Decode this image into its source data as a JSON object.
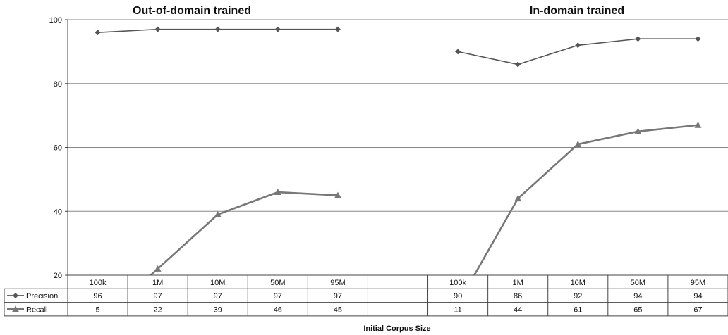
{
  "chart_data": {
    "type": "line",
    "xlabel": "Initial Corpus Size",
    "ylabel": "",
    "ylim": [
      20,
      100
    ],
    "yticks": [
      20,
      40,
      60,
      80,
      100
    ],
    "grid": true,
    "legend": "data table",
    "panels": [
      {
        "title": "Out-of-domain trained",
        "categories": [
          "100k",
          "1M",
          "10M",
          "50M",
          "95M"
        ]
      },
      {
        "title": "In-domain trained",
        "categories": [
          "100k",
          "1M",
          "10M",
          "50M",
          "95M"
        ]
      }
    ],
    "series": [
      {
        "name": "Precision",
        "marker": "diamond",
        "color": "#555555",
        "values": [
          96,
          97,
          97,
          97,
          97,
          90,
          86,
          92,
          94,
          94
        ]
      },
      {
        "name": "Recall",
        "marker": "triangle",
        "color": "#777777",
        "values": [
          5,
          22,
          39,
          46,
          45,
          11,
          44,
          61,
          65,
          67
        ]
      }
    ]
  }
}
